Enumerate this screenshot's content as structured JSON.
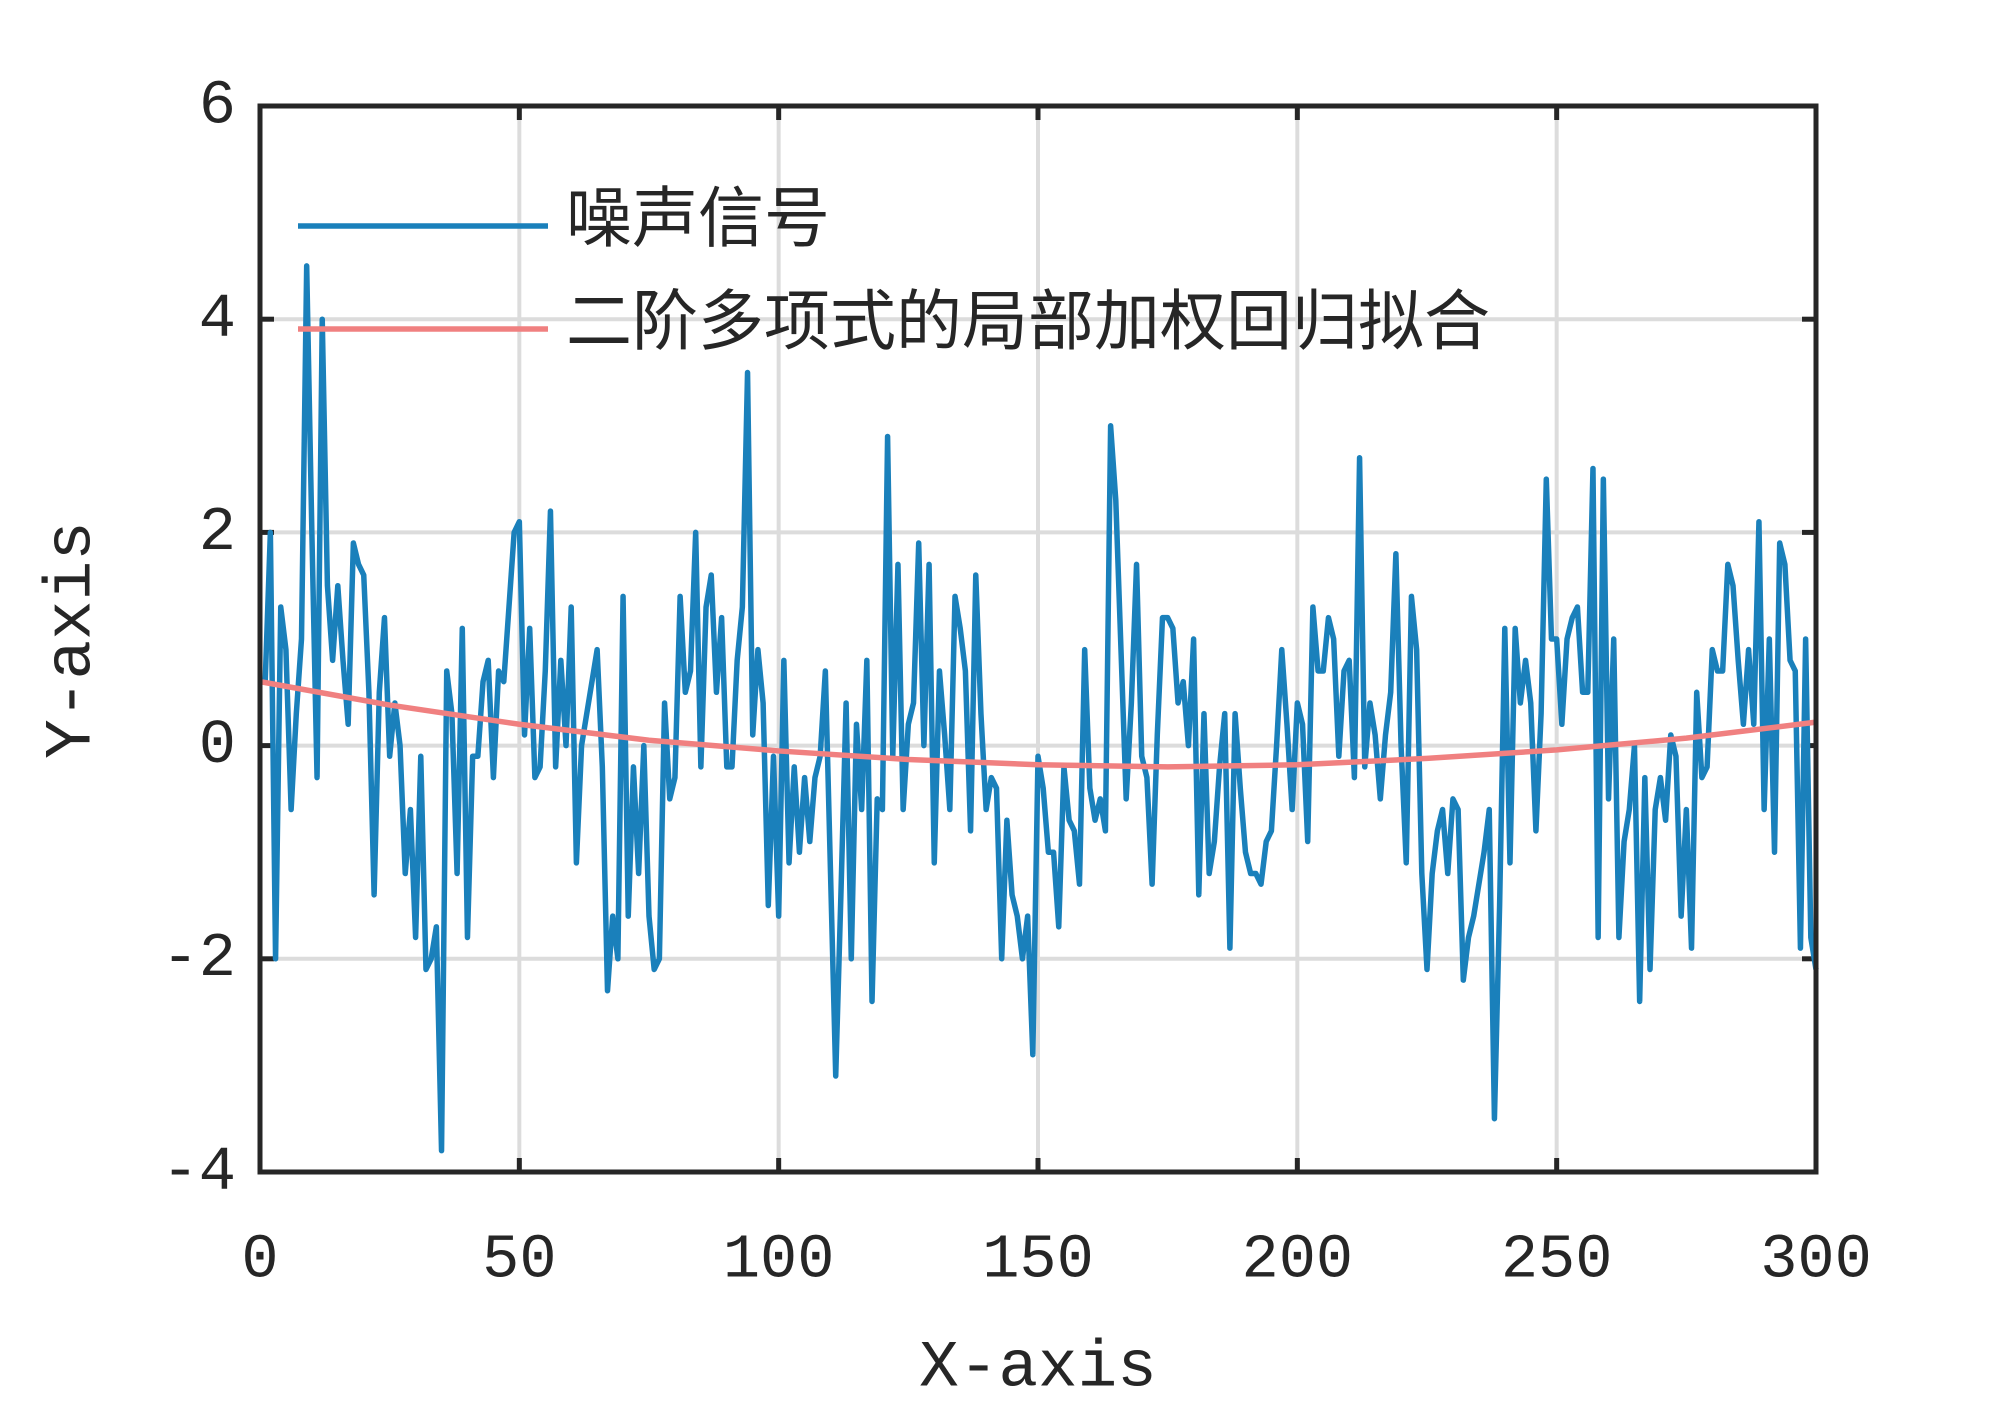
{
  "chart_data": {
    "type": "line",
    "xlabel": "X-axis",
    "ylabel": "Y-axis",
    "xlim": [
      0,
      300
    ],
    "xticks": [
      0,
      50,
      100,
      150,
      200,
      250,
      300
    ],
    "ylim": [
      -4,
      6
    ],
    "yticks": [
      -4,
      -2,
      0,
      2,
      4,
      6
    ],
    "grid": true,
    "legend": "upper left",
    "series": [
      {
        "name": "噪声信号",
        "color": "#1a80bb",
        "x": [
          1,
          2,
          3,
          4,
          5,
          6,
          7,
          8,
          9,
          10,
          11,
          12,
          13,
          14,
          15,
          16,
          17,
          18,
          19,
          20,
          21,
          22,
          23,
          24,
          25,
          26,
          27,
          28,
          29,
          30,
          31,
          32,
          33,
          34,
          35,
          36,
          37,
          38,
          39,
          40,
          41,
          42,
          43,
          44,
          45,
          46,
          47,
          48,
          49,
          50,
          51,
          52,
          53,
          54,
          55,
          56,
          57,
          58,
          59,
          60,
          61,
          62,
          63,
          64,
          65,
          66,
          67,
          68,
          69,
          70,
          71,
          72,
          73,
          74,
          75,
          76,
          77,
          78,
          79,
          80,
          81,
          82,
          83,
          84,
          85,
          86,
          87,
          88,
          89,
          90,
          91,
          92,
          93,
          94,
          95,
          96,
          97,
          98,
          99,
          100,
          101,
          102,
          103,
          104,
          105,
          106,
          107,
          108,
          109,
          110,
          111,
          112,
          113,
          114,
          115,
          116,
          117,
          118,
          119,
          120,
          121,
          122,
          123,
          124,
          125,
          126,
          127,
          128,
          129,
          130,
          131,
          132,
          133,
          134,
          135,
          136,
          137,
          138,
          139,
          140,
          141,
          142,
          143,
          144,
          145,
          146,
          147,
          148,
          149,
          150,
          151,
          152,
          153,
          154,
          155,
          156,
          157,
          158,
          159,
          160,
          161,
          162,
          163,
          164,
          165,
          166,
          167,
          168,
          169,
          170,
          171,
          172,
          173,
          174,
          175,
          176,
          177,
          178,
          179,
          180,
          181,
          182,
          183,
          184,
          185,
          186,
          187,
          188,
          189,
          190,
          191,
          192,
          193,
          194,
          195,
          196,
          197,
          198,
          199,
          200,
          201,
          202,
          203,
          204,
          205,
          206,
          207,
          208,
          209,
          210,
          211,
          212,
          213,
          214,
          215,
          216,
          217,
          218,
          219,
          220,
          221,
          222,
          223,
          224,
          225,
          226,
          227,
          228,
          229,
          230,
          231,
          232,
          233,
          234,
          235,
          236,
          237,
          238,
          239,
          240,
          241,
          242,
          243,
          244,
          245,
          246,
          247,
          248,
          249,
          250,
          251,
          252,
          253,
          254,
          255,
          256,
          257,
          258,
          259,
          260,
          261,
          262,
          263,
          264,
          265,
          266,
          267,
          268,
          269,
          270,
          271,
          272,
          273,
          274,
          275,
          276,
          277,
          278,
          279,
          280,
          281,
          282,
          283,
          284,
          285,
          286,
          287,
          288,
          289,
          290,
          291,
          292,
          293,
          294,
          295,
          296,
          297,
          298,
          299,
          300
        ],
        "values": [
          0.6,
          2.0,
          -2.0,
          1.3,
          0.9,
          -0.6,
          0.3,
          1.0,
          4.5,
          2.0,
          -0.3,
          4.0,
          1.5,
          0.8,
          1.5,
          0.8,
          0.2,
          1.9,
          1.7,
          1.6,
          0.5,
          -1.4,
          0.5,
          1.2,
          -0.1,
          0.4,
          0.0,
          -1.2,
          -0.6,
          -1.8,
          -0.1,
          -2.1,
          -2.0,
          -1.7,
          -3.8,
          0.7,
          0.3,
          -1.2,
          1.1,
          -1.8,
          -0.1,
          -0.1,
          0.6,
          0.8,
          -0.3,
          0.7,
          0.6,
          1.3,
          2.0,
          2.1,
          0.1,
          1.1,
          -0.3,
          -0.2,
          0.7,
          2.2,
          -0.2,
          0.8,
          0.0,
          1.3,
          -1.1,
          0.0,
          0.3,
          0.6,
          0.9,
          -0.2,
          -2.3,
          -1.6,
          -2.0,
          1.4,
          -1.6,
          -0.2,
          -1.2,
          0.0,
          -1.6,
          -2.1,
          -2.0,
          0.4,
          -0.5,
          -0.3,
          1.4,
          0.5,
          0.7,
          2.0,
          -0.2,
          1.3,
          1.6,
          0.5,
          1.2,
          -0.2,
          -0.2,
          0.8,
          1.3,
          3.5,
          0.1,
          0.9,
          0.4,
          -1.5,
          -0.1,
          -1.6,
          0.8,
          -1.1,
          -0.2,
          -1.0,
          -0.3,
          -0.9,
          -0.3,
          -0.1,
          0.7,
          -1.2,
          -3.1,
          -1.4,
          0.4,
          -2.0,
          0.2,
          -0.6,
          0.8,
          -2.4,
          -0.5,
          -0.6,
          2.9,
          -0.1,
          1.7,
          -0.6,
          0.2,
          0.4,
          1.9,
          0.0,
          1.7,
          -1.1,
          0.7,
          0.1,
          -0.6,
          1.4,
          1.1,
          0.7,
          -0.8,
          1.6,
          0.3,
          -0.6,
          -0.3,
          -0.4,
          -2.0,
          -0.7,
          -1.4,
          -1.6,
          -2.0,
          -1.6,
          -2.9,
          -0.1,
          -0.4,
          -1.0,
          -1.0,
          -1.7,
          -0.2,
          -0.7,
          -0.8,
          -1.3,
          0.9,
          -0.4,
          -0.7,
          -0.5,
          -0.8,
          3.0,
          2.3,
          0.9,
          -0.5,
          0.4,
          1.7,
          -0.1,
          -0.3,
          -1.3,
          0.1,
          1.2,
          1.2,
          1.1,
          0.4,
          0.6,
          0.0,
          1.0,
          -1.4,
          0.3,
          -1.2,
          -0.9,
          -0.2,
          0.3,
          -1.9,
          0.3,
          -0.4,
          -1.0,
          -1.2,
          -1.2,
          -1.3,
          -0.9,
          -0.8,
          0.0,
          0.9,
          0.2,
          -0.6,
          0.4,
          0.2,
          -0.9,
          1.3,
          0.7,
          0.7,
          1.2,
          1.0,
          -0.1,
          0.7,
          0.8,
          -0.3,
          2.7,
          -0.2,
          0.4,
          0.1,
          -0.5,
          0.1,
          0.5,
          1.8,
          0.0,
          -1.1,
          1.4,
          0.9,
          -1.2,
          -2.1,
          -1.2,
          -0.8,
          -0.6,
          -1.2,
          -0.5,
          -0.6,
          -2.2,
          -1.8,
          -1.6,
          -1.3,
          -1.0,
          -0.6,
          -3.5,
          -1.5,
          1.1,
          -1.1,
          1.1,
          0.4,
          0.8,
          0.4,
          -0.8,
          0.3,
          2.5,
          1.0,
          1.0,
          0.2,
          1.0,
          1.2,
          1.3,
          0.5,
          0.5,
          2.6,
          -1.8,
          2.5,
          -0.5,
          1.0,
          -1.8,
          -0.9,
          -0.6,
          0.0,
          -2.4,
          -0.3,
          -2.1,
          -0.6,
          -0.3,
          -0.7,
          0.1,
          -0.1,
          -1.6,
          -0.6,
          -1.9,
          0.5,
          -0.3,
          -0.2,
          0.9,
          0.7,
          0.7,
          1.7,
          1.5,
          0.8,
          0.2,
          0.9,
          0.2,
          2.1,
          -0.6,
          1.0,
          -1.0,
          1.9,
          1.7,
          0.8,
          0.7,
          -1.9,
          1.0,
          -1.8,
          -2.1
        ]
      },
      {
        "name": "二阶多项式的局部加权回归拟合",
        "color": "#f08080",
        "x": [
          0,
          25,
          50,
          75,
          100,
          125,
          150,
          175,
          200,
          225,
          250,
          275,
          300
        ],
        "values": [
          0.6,
          0.38,
          0.2,
          0.05,
          -0.05,
          -0.13,
          -0.18,
          -0.2,
          -0.18,
          -0.12,
          -0.04,
          0.07,
          0.22
        ]
      }
    ]
  }
}
